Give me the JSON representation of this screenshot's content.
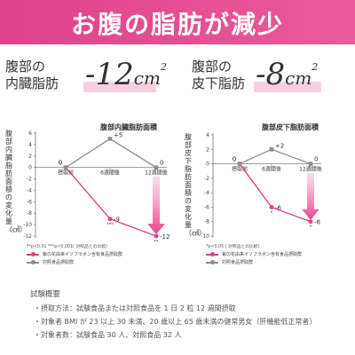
{
  "header": {
    "title": "お腹の脂肪が減少"
  },
  "stats": [
    {
      "label_line1": "腹部の",
      "label_line2": "内臓脂肪",
      "value": "-12",
      "unit": "cm",
      "sup": "2"
    },
    {
      "label_line1": "腹部の",
      "label_line2": "皮下脂肪",
      "value": "-8",
      "unit": "cm",
      "sup": "2"
    }
  ],
  "chart_data": [
    {
      "type": "line",
      "title": "腹部内臓脂肪面積",
      "ylabel": "腹部内臓脂肪面積の変化量（㎠）",
      "x": [
        "摂取前",
        "6週間後",
        "12週間後"
      ],
      "ylim": [
        -12,
        6
      ],
      "yticks": [
        6,
        4,
        2,
        0,
        -2,
        -4,
        -6,
        -8,
        -10,
        -12
      ],
      "series": [
        {
          "name": "紫の花由来イソフラボン含有食品摂取群",
          "color": "#e23c8c",
          "values": [
            0,
            -9,
            -12
          ],
          "labels": [
            "0",
            "-9",
            "-12"
          ],
          "sig": [
            "",
            "***",
            "**"
          ]
        },
        {
          "name": "対照食品摂取群",
          "color": "#8d8d8d",
          "values": [
            0,
            5,
            0
          ],
          "labels": [
            "0",
            "+5",
            "0"
          ]
        }
      ],
      "footnote": "**p<0.01 ***p<0.001( 対照品との比較)"
    },
    {
      "type": "line",
      "title": "腹部皮下脂肪面積",
      "ylabel": "腹部皮下脂肪面積の変化量（㎠）",
      "x": [
        "摂取前",
        "6週間後",
        "12週間後"
      ],
      "ylim": [
        -10,
        4
      ],
      "yticks": [
        4,
        2,
        0,
        -2,
        -4,
        -6,
        -8,
        -10
      ],
      "series": [
        {
          "name": "紫の花由来イソフラボン含有食品摂取群",
          "color": "#e23c8c",
          "values": [
            0,
            -6,
            -8
          ],
          "labels": [
            "0",
            "-6",
            "-8"
          ],
          "sig": [
            "",
            "*",
            "*"
          ]
        },
        {
          "name": "対照食品摂取群",
          "color": "#8d8d8d",
          "values": [
            0,
            2,
            0
          ],
          "labels": [
            "0",
            "+2",
            "0"
          ]
        }
      ],
      "footnote": "*p<0.05 ( 対照品との比較)"
    }
  ],
  "outline": {
    "title": "試験概要",
    "items": [
      "・摂取方法：試験食品または対照食品を 1 日 2 粒 12 週間摂取",
      "・対象者 BMI が 23 以上 30 未満、20 歳以上 65 歳未満の健常男女（肝機能低正常者）",
      "・対象者数：試験食品 30 人、対照食品 32 人"
    ]
  },
  "colors": {
    "accent": "#e23c8c",
    "control": "#8d8d8d",
    "banner": "#e0428b",
    "band": "#f8cfe0"
  }
}
